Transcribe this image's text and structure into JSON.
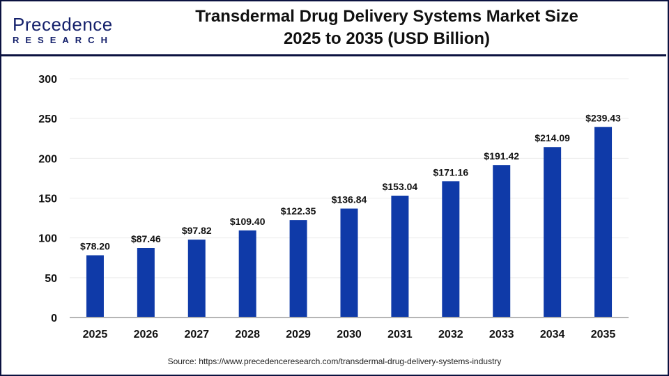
{
  "logo": {
    "main": "Precedence",
    "sub": "RESEARCH"
  },
  "header": {
    "title_line1": "Transdermal Drug Delivery Systems Market Size",
    "title_line2": "2025 to 2035 (USD Billion)"
  },
  "source": "Source: https://www.precedenceresearch.com/transdermal-drug-delivery-systems-industry",
  "colors": {
    "bar": "#0f3aa8",
    "border": "#0b1240",
    "grid": "#ececec"
  },
  "chart_data": {
    "type": "bar",
    "categories": [
      "2025",
      "2026",
      "2027",
      "2028",
      "2029",
      "2030",
      "2031",
      "2032",
      "2033",
      "2034",
      "2035"
    ],
    "values": [
      78.2,
      87.46,
      97.82,
      109.4,
      122.35,
      136.84,
      153.04,
      171.16,
      191.42,
      214.09,
      239.43
    ],
    "data_labels": [
      "$78.20",
      "$87.46",
      "$97.82",
      "$109.40",
      "$122.35",
      "$136.84",
      "$153.04",
      "$171.16",
      "$191.42",
      "$214.09",
      "$239.43"
    ],
    "yticks": [
      0,
      50,
      100,
      150,
      200,
      250,
      300
    ],
    "ylim": [
      0,
      300
    ],
    "grid": true,
    "title": "Transdermal Drug Delivery Systems Market Size 2025 to 2035 (USD Billion)"
  }
}
